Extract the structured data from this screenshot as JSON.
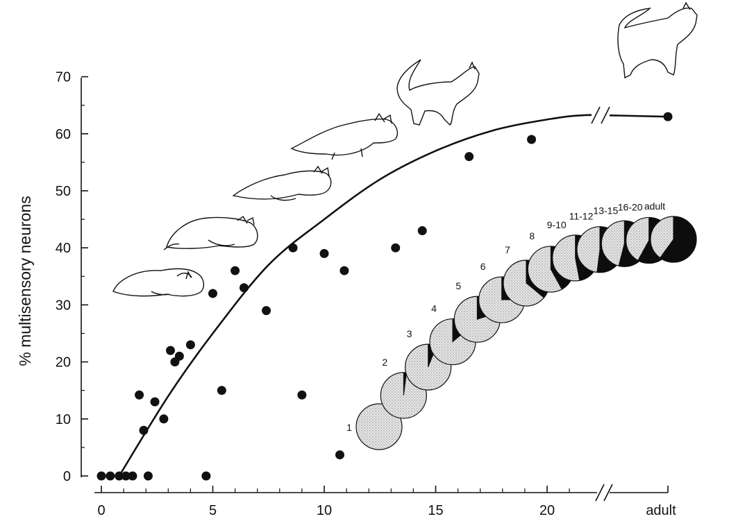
{
  "chart_data": {
    "type": "scatter",
    "title": "",
    "xlabel": "",
    "ylabel": "% multisensory neurons",
    "xlim": [
      0,
      25
    ],
    "ylim": [
      0,
      70
    ],
    "x_ticks": [
      "0",
      "5",
      "10",
      "15",
      "20",
      "adult"
    ],
    "y_ticks": [
      "0",
      "10",
      "20",
      "30",
      "40",
      "50",
      "60",
      "70"
    ],
    "axis_break": "between 22 and adult",
    "grid": false,
    "legend": "none",
    "series": [
      {
        "type": "scatter",
        "points": [
          {
            "x": 0.0,
            "y": 0
          },
          {
            "x": 0.4,
            "y": 0
          },
          {
            "x": 0.8,
            "y": 0
          },
          {
            "x": 1.1,
            "y": 0
          },
          {
            "x": 1.4,
            "y": 0
          },
          {
            "x": 2.1,
            "y": 0
          },
          {
            "x": 4.7,
            "y": 0
          },
          {
            "x": 1.7,
            "y": 14.2
          },
          {
            "x": 1.9,
            "y": 8
          },
          {
            "x": 2.4,
            "y": 13
          },
          {
            "x": 2.8,
            "y": 10
          },
          {
            "x": 3.1,
            "y": 22
          },
          {
            "x": 3.3,
            "y": 20
          },
          {
            "x": 3.5,
            "y": 21
          },
          {
            "x": 4.0,
            "y": 23
          },
          {
            "x": 5.0,
            "y": 32
          },
          {
            "x": 5.4,
            "y": 15
          },
          {
            "x": 6.0,
            "y": 36
          },
          {
            "x": 6.4,
            "y": 33
          },
          {
            "x": 7.4,
            "y": 29
          },
          {
            "x": 8.6,
            "y": 40
          },
          {
            "x": 9.0,
            "y": 14.2
          },
          {
            "x": 10.0,
            "y": 39
          },
          {
            "x": 10.7,
            "y": 3.7
          },
          {
            "x": 10.9,
            "y": 36
          },
          {
            "x": 13.2,
            "y": 40
          },
          {
            "x": 14.4,
            "y": 43
          },
          {
            "x": 16.5,
            "y": 56
          },
          {
            "x": 19.3,
            "y": 59
          },
          {
            "x": "adult",
            "y": 63
          }
        ]
      },
      {
        "type": "line",
        "curve": "fitted",
        "points": [
          {
            "x": 0.8,
            "y": 0
          },
          {
            "x": 3,
            "y": 14
          },
          {
            "x": 5,
            "y": 25
          },
          {
            "x": 7.5,
            "y": 37
          },
          {
            "x": 10,
            "y": 45
          },
          {
            "x": 12.5,
            "y": 52
          },
          {
            "x": 15,
            "y": 57
          },
          {
            "x": 17.5,
            "y": 60.5
          },
          {
            "x": 20,
            "y": 62.5
          },
          {
            "x": 22,
            "y": 63.3
          },
          {
            "x": "adult",
            "y": 63
          }
        ]
      }
    ],
    "pies": [
      {
        "label": "1",
        "multisensory_fraction": 0.0
      },
      {
        "label": "2",
        "multisensory_fraction": 0.02
      },
      {
        "label": "3",
        "multisensory_fraction": 0.06
      },
      {
        "label": "4",
        "multisensory_fraction": 0.14
      },
      {
        "label": "5",
        "multisensory_fraction": 0.2
      },
      {
        "label": "6",
        "multisensory_fraction": 0.25
      },
      {
        "label": "7",
        "multisensory_fraction": 0.36
      },
      {
        "label": "8",
        "multisensory_fraction": 0.42
      },
      {
        "label": "9-10",
        "multisensory_fraction": 0.47
      },
      {
        "label": "11-12",
        "multisensory_fraction": 0.52
      },
      {
        "label": "13-15",
        "multisensory_fraction": 0.54
      },
      {
        "label": "16-20",
        "multisensory_fraction": 0.58
      },
      {
        "label": "adult",
        "multisensory_fraction": 0.6
      }
    ],
    "illustrations": [
      "kitten-icon",
      "kitten-icon",
      "kitten-icon",
      "kitten-icon",
      "cat-icon",
      "cat-icon"
    ],
    "colors": {
      "ink": "#111111",
      "pie_filled": "#0d0d0d",
      "pie_stipple": "#d9d9d9"
    }
  }
}
